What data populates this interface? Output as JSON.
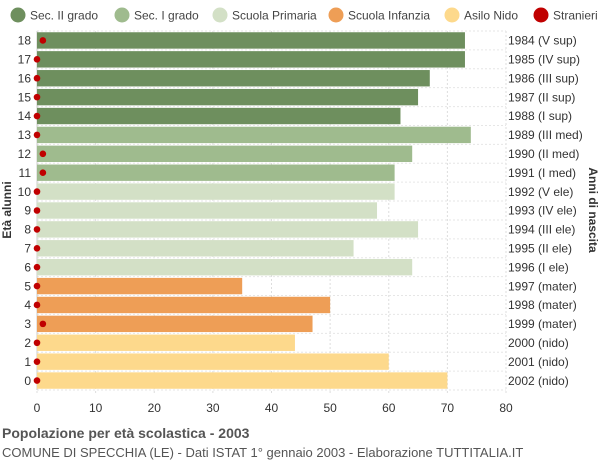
{
  "chart_data": {
    "type": "bar",
    "orientation": "horizontal",
    "title": "Popolazione per età scolastica - 2003",
    "subtitle": "COMUNE DI SPECCHIA (LE) - Dati ISTAT 1° gennaio 2003 - Elaborazione TUTTITALIA.IT",
    "ylabel": "Età alunni",
    "ylabel_right": "Anni di nascita",
    "xlim": [
      0,
      80
    ],
    "x_ticks": [
      0,
      10,
      20,
      30,
      40,
      50,
      60,
      70,
      80
    ],
    "grid": true,
    "legend_position": "top",
    "legend": [
      {
        "name": "Sec. II grado",
        "color": "#6e8f5e"
      },
      {
        "name": "Sec. I grado",
        "color": "#9fbb8e"
      },
      {
        "name": "Scuola Primaria",
        "color": "#d3e0c6"
      },
      {
        "name": "Scuola Infanzia",
        "color": "#ee9e56"
      },
      {
        "name": "Asilo Nido",
        "color": "#fdd98c"
      },
      {
        "name": "Stranieri",
        "color": "#c00000"
      }
    ],
    "bars": [
      {
        "age": "18",
        "birth": "1984 (V sup)",
        "value": 73,
        "stranieri": 1,
        "group": 0
      },
      {
        "age": "17",
        "birth": "1985 (IV sup)",
        "value": 73,
        "stranieri": 0,
        "group": 0
      },
      {
        "age": "16",
        "birth": "1986 (III sup)",
        "value": 67,
        "stranieri": 0,
        "group": 0
      },
      {
        "age": "15",
        "birth": "1987 (II sup)",
        "value": 65,
        "stranieri": 0,
        "group": 0
      },
      {
        "age": "14",
        "birth": "1988 (I sup)",
        "value": 62,
        "stranieri": 0,
        "group": 0
      },
      {
        "age": "13",
        "birth": "1989 (III med)",
        "value": 74,
        "stranieri": 0,
        "group": 1
      },
      {
        "age": "12",
        "birth": "1990 (II med)",
        "value": 64,
        "stranieri": 1,
        "group": 1
      },
      {
        "age": "11",
        "birth": "1991 (I med)",
        "value": 61,
        "stranieri": 1,
        "group": 1
      },
      {
        "age": "10",
        "birth": "1992 (V ele)",
        "value": 61,
        "stranieri": 0,
        "group": 2
      },
      {
        "age": "9",
        "birth": "1993 (IV ele)",
        "value": 58,
        "stranieri": 0,
        "group": 2
      },
      {
        "age": "8",
        "birth": "1994 (III ele)",
        "value": 65,
        "stranieri": 0,
        "group": 2
      },
      {
        "age": "7",
        "birth": "1995 (II ele)",
        "value": 54,
        "stranieri": 0,
        "group": 2
      },
      {
        "age": "6",
        "birth": "1996 (I ele)",
        "value": 64,
        "stranieri": 0,
        "group": 2
      },
      {
        "age": "5",
        "birth": "1997 (mater)",
        "value": 35,
        "stranieri": 0,
        "group": 3
      },
      {
        "age": "4",
        "birth": "1998 (mater)",
        "value": 50,
        "stranieri": 0,
        "group": 3
      },
      {
        "age": "3",
        "birth": "1999 (mater)",
        "value": 47,
        "stranieri": 1,
        "group": 3
      },
      {
        "age": "2",
        "birth": "2000 (nido)",
        "value": 44,
        "stranieri": 0,
        "group": 4
      },
      {
        "age": "1",
        "birth": "2001 (nido)",
        "value": 60,
        "stranieri": 0,
        "group": 4
      },
      {
        "age": "0",
        "birth": "2002 (nido)",
        "value": 70,
        "stranieri": 0,
        "group": 4
      }
    ]
  }
}
